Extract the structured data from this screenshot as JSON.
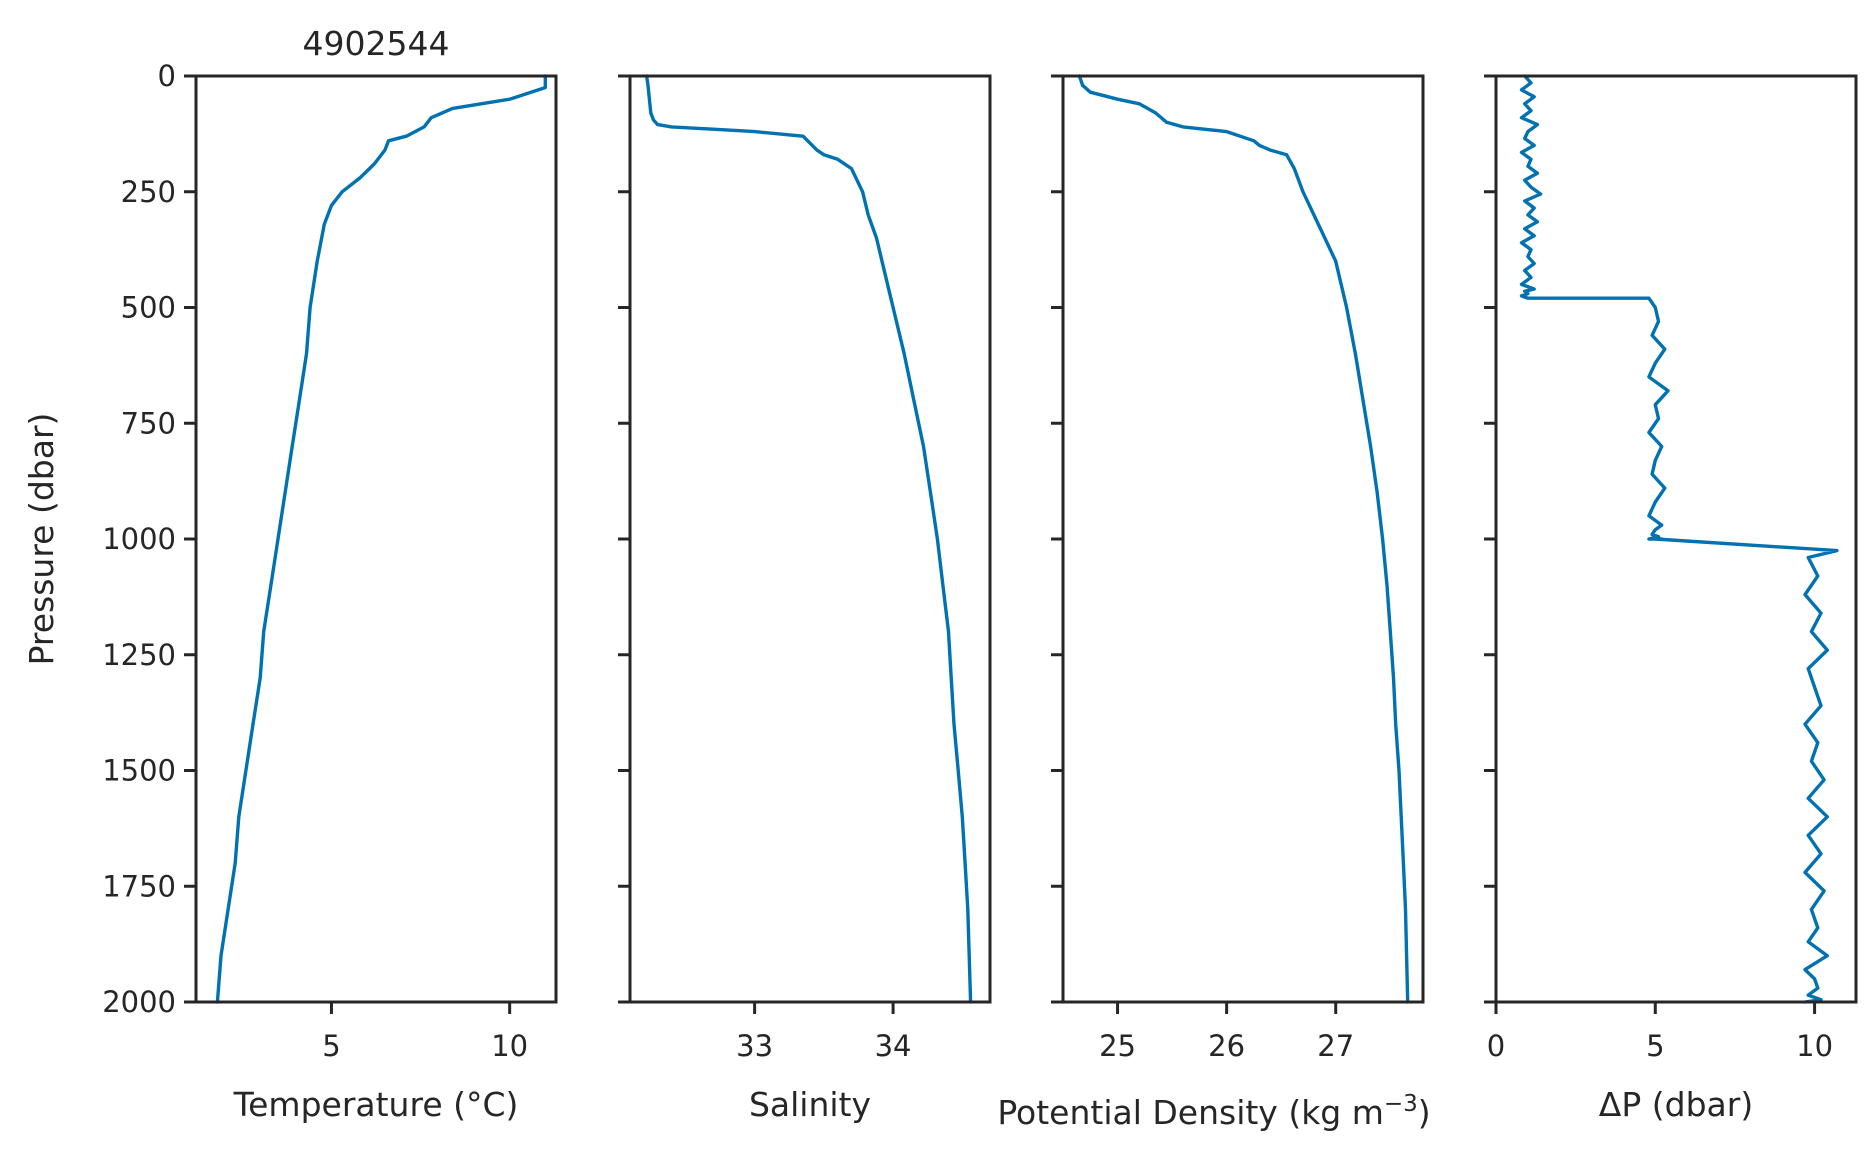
{
  "chart_data": [
    {
      "type": "line",
      "title": "4902544",
      "xlabel": "Temperature (°C)",
      "ylabel": "Pressure (dbar)",
      "xlim": [
        1.2,
        11.3
      ],
      "ylim": [
        2000,
        0
      ],
      "xticks": [
        5,
        10
      ],
      "xtick_labels": [
        "5",
        "10"
      ],
      "yticks": [
        0,
        250,
        500,
        750,
        1000,
        1250,
        1500,
        1750,
        2000
      ],
      "ytick_labels": [
        "0",
        "250",
        "500",
        "750",
        "1000",
        "1250",
        "1500",
        "1750",
        "2000"
      ],
      "color": "#0072B2",
      "series": [
        {
          "x": [
            11.0,
            11.0,
            10.8,
            10.0,
            9.2,
            8.4,
            7.8,
            7.6,
            7.1,
            6.6,
            6.5,
            6.2,
            5.8,
            5.3,
            5.0,
            4.8,
            4.6,
            4.4,
            4.3,
            4.1,
            3.9,
            3.7,
            3.5,
            3.3,
            3.1,
            3.0,
            2.8,
            2.6,
            2.4,
            2.3,
            2.1,
            1.9,
            1.8
          ],
          "y": [
            0,
            25,
            30,
            50,
            60,
            70,
            90,
            110,
            130,
            140,
            160,
            190,
            220,
            250,
            280,
            320,
            400,
            500,
            600,
            700,
            800,
            900,
            1000,
            1100,
            1200,
            1300,
            1400,
            1500,
            1600,
            1700,
            1800,
            1900,
            2000
          ]
        }
      ]
    },
    {
      "type": "line",
      "xlabel": "Salinity",
      "xlim": [
        32.1,
        34.7
      ],
      "ylim": [
        2000,
        0
      ],
      "xticks": [
        33,
        34
      ],
      "xtick_labels": [
        "33",
        "34"
      ],
      "color": "#0072B2",
      "series": [
        {
          "x": [
            32.22,
            32.23,
            32.24,
            32.25,
            32.27,
            32.3,
            32.4,
            32.7,
            33.0,
            33.35,
            33.45,
            33.5,
            33.6,
            33.7,
            33.78,
            33.82,
            33.88,
            33.92,
            34.0,
            34.08,
            34.15,
            34.22,
            34.27,
            34.32,
            34.36,
            34.4,
            34.42,
            34.44,
            34.47,
            34.5,
            34.52,
            34.54,
            34.56
          ],
          "y": [
            0,
            20,
            50,
            80,
            95,
            105,
            110,
            115,
            120,
            130,
            160,
            170,
            180,
            200,
            250,
            300,
            350,
            400,
            500,
            600,
            700,
            800,
            900,
            1000,
            1100,
            1200,
            1300,
            1400,
            1500,
            1600,
            1700,
            1800,
            2000
          ]
        }
      ]
    },
    {
      "type": "line",
      "xlabel": "Potential Density (kg m$^{-3}$)",
      "xlim": [
        24.5,
        27.8
      ],
      "ylim": [
        2000,
        0
      ],
      "xticks": [
        25,
        26,
        27
      ],
      "xtick_labels": [
        "25",
        "26",
        "27"
      ],
      "color": "#0072B2",
      "series": [
        {
          "x": [
            24.65,
            24.68,
            24.75,
            25.0,
            25.2,
            25.35,
            25.45,
            25.6,
            26.0,
            26.25,
            26.3,
            26.4,
            26.55,
            26.62,
            26.7,
            26.8,
            26.9,
            27.0,
            27.1,
            27.18,
            27.25,
            27.32,
            27.38,
            27.43,
            27.47,
            27.5,
            27.53,
            27.55,
            27.58,
            27.6,
            27.62,
            27.64,
            27.66
          ],
          "y": [
            0,
            20,
            35,
            50,
            60,
            80,
            100,
            110,
            120,
            140,
            150,
            160,
            170,
            200,
            250,
            300,
            350,
            400,
            500,
            600,
            700,
            800,
            900,
            1000,
            1100,
            1200,
            1300,
            1400,
            1500,
            1600,
            1700,
            1800,
            2000
          ]
        }
      ]
    },
    {
      "type": "line",
      "xlabel": "ΔP (dbar)",
      "xlim": [
        0,
        11.3
      ],
      "ylim": [
        2000,
        0
      ],
      "xticks": [
        0,
        5,
        10
      ],
      "xtick_labels": [
        "0",
        "5",
        "10"
      ],
      "color": "#0072B2",
      "series": [
        {
          "x": [
            0.9,
            1.1,
            0.8,
            1.2,
            0.9,
            1.1,
            0.8,
            1.3,
            1.0,
            0.9,
            1.2,
            0.8,
            1.1,
            1.0,
            1.3,
            0.9,
            1.1,
            1.4,
            0.9,
            1.2,
            1.0,
            1.3,
            0.9,
            1.2,
            0.8,
            1.1,
            1.0,
            1.2,
            0.9,
            1.1,
            0.8,
            1.2,
            0.9,
            1.0,
            0.8,
            1.0,
            4.8,
            5.0,
            5.1,
            4.9,
            5.3,
            5.0,
            4.8,
            5.4,
            5.0,
            5.1,
            4.8,
            5.2,
            5.0,
            4.9,
            5.3,
            5.0,
            4.8,
            5.2,
            5.0,
            4.9,
            5.1,
            4.8,
            5.2,
            5.0,
            10.7,
            9.8,
            10.1,
            9.7,
            10.2,
            9.9,
            10.4,
            9.8,
            10.0,
            10.2,
            9.7,
            10.1,
            9.9,
            10.3,
            9.8,
            10.4,
            9.8,
            10.2,
            9.7,
            10.3,
            9.9,
            10.1,
            9.8,
            10.4,
            9.7,
            10.0,
            10.1,
            9.8,
            10.2,
            9.7
          ],
          "y": [
            0,
            15,
            30,
            45,
            60,
            75,
            90,
            105,
            120,
            135,
            150,
            165,
            180,
            195,
            210,
            225,
            240,
            255,
            270,
            285,
            300,
            315,
            330,
            345,
            360,
            375,
            390,
            405,
            420,
            435,
            450,
            460,
            465,
            470,
            475,
            480,
            480,
            500,
            530,
            560,
            590,
            620,
            650,
            680,
            710,
            740,
            770,
            800,
            830,
            860,
            890,
            920,
            950,
            970,
            980,
            990,
            995,
            1000,
            1000,
            1000,
            1025,
            1040,
            1080,
            1120,
            1160,
            1200,
            1240,
            1280,
            1320,
            1360,
            1400,
            1440,
            1480,
            1520,
            1560,
            1600,
            1640,
            1680,
            1720,
            1760,
            1800,
            1840,
            1870,
            1900,
            1930,
            1950,
            1970,
            1985,
            1995,
            2000
          ]
        }
      ]
    }
  ]
}
